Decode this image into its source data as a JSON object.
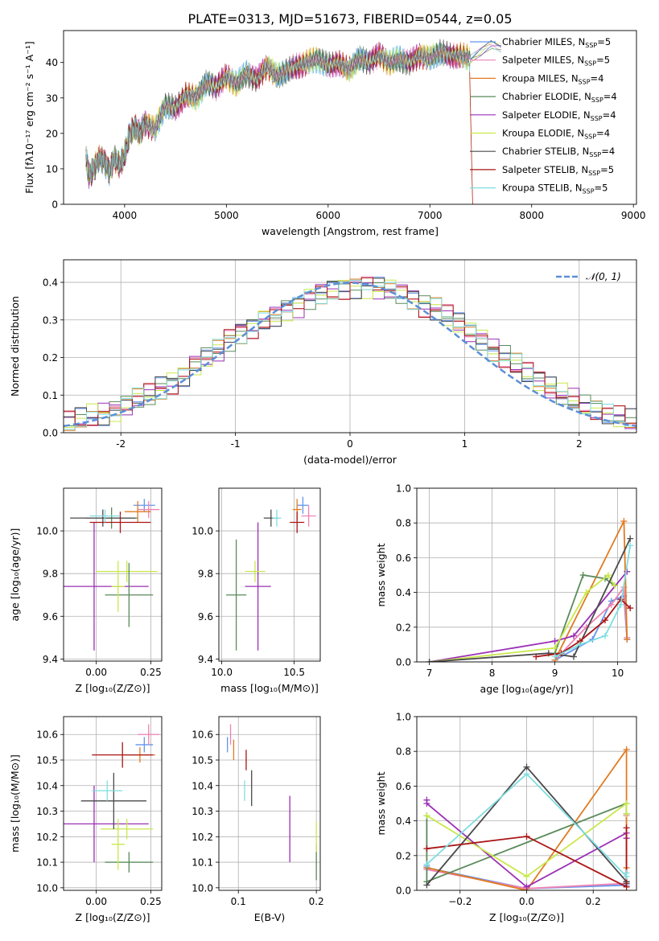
{
  "figure_title": "PLATE=0313, MJD=51673, FIBERID=0544, z=0.05",
  "series": [
    {
      "key": "cm",
      "label": "Chabrier MILES, N",
      "n": "=5",
      "color": "#6495ed"
    },
    {
      "key": "sm",
      "label": "Salpeter MILES, N",
      "n": "=5",
      "color": "#ee82b4"
    },
    {
      "key": "km",
      "label": "Kroupa MILES, N",
      "n": "=4",
      "color": "#e07b20"
    },
    {
      "key": "ce",
      "label": "Chabrier ELODIE, N",
      "n": "=4",
      "color": "#5a8a5a"
    },
    {
      "key": "se",
      "label": "Salpeter ELODIE, N",
      "n": "=4",
      "color": "#9b2fb5"
    },
    {
      "key": "ke",
      "label": "Kroupa ELODIE, N",
      "n": "=4",
      "color": "#c8e84a"
    },
    {
      "key": "cs",
      "label": "Chabrier STELIB, N",
      "n": "=4",
      "color": "#4a4a4a"
    },
    {
      "key": "ss",
      "label": "Salpeter STELIB, N",
      "n": "=5",
      "color": "#aa1515"
    },
    {
      "key": "ks",
      "label": "Kroupa STELIB, N",
      "n": "=5",
      "color": "#7fdde0"
    }
  ],
  "legend_sub": "SSP",
  "chart_data": [
    {
      "id": "spectrum",
      "type": "line",
      "xlabel": "wavelength [Angstrom, rest frame]",
      "ylabel": "Flux [fλ10⁻¹⁷ erg cm⁻² s⁻¹ A⁻¹]",
      "xlim": [
        3400,
        9030
      ],
      "ylim": [
        0,
        49
      ],
      "xticks": [
        4000,
        5000,
        6000,
        7000,
        8000,
        9000
      ],
      "yticks": [
        0,
        10,
        20,
        30,
        40
      ],
      "grid": false,
      "legend": "top-right",
      "x": [
        3620,
        3650,
        3700,
        3750,
        3800,
        3850,
        3900,
        3950,
        4000,
        4050,
        4100,
        4150,
        4200,
        4300,
        4400,
        4500,
        4600,
        4700,
        4800,
        4900,
        5000,
        5100,
        5200,
        5300,
        5400,
        5500,
        5600,
        5700,
        5800,
        5900,
        6000,
        6100,
        6200,
        6300,
        6400,
        6500,
        6600,
        6700,
        6800,
        6900,
        7000,
        7100,
        7200,
        7300,
        7400
      ],
      "y": [
        14,
        8,
        10,
        13,
        12,
        9,
        13,
        11,
        14,
        20,
        22,
        20,
        23,
        21,
        28,
        27,
        31,
        30,
        34,
        33,
        36,
        34,
        37,
        35,
        39,
        36,
        38,
        39,
        40,
        41,
        39,
        40,
        38,
        41,
        40,
        42,
        40,
        41,
        40,
        42,
        41,
        43,
        42,
        42,
        41
      ],
      "legend_tail": {
        "x": [
          7400,
          7500,
          7600,
          7700
        ],
        "y": [
          41,
          43,
          45,
          44
        ]
      },
      "deep_drop_x": 7420
    },
    {
      "id": "residuals",
      "type": "line",
      "xlabel": "(data-model)/error",
      "ylabel": "Normed distribution",
      "xlim": [
        -2.5,
        2.5
      ],
      "ylim": [
        0,
        0.46
      ],
      "xticks": [
        -2,
        -1,
        0,
        1,
        2
      ],
      "yticks": [
        0.0,
        0.1,
        0.2,
        0.3,
        0.4
      ],
      "grid": true,
      "legend": "top-right",
      "normal_label": "𝒩(0, 1)",
      "normal_color": "#5b8fd6",
      "bins": [
        -2.5,
        -2.4,
        -2.3,
        -2.2,
        -2.1,
        -2.0,
        -1.9,
        -1.8,
        -1.7,
        -1.6,
        -1.5,
        -1.4,
        -1.3,
        -1.2,
        -1.1,
        -1.0,
        -0.9,
        -0.8,
        -0.7,
        -0.6,
        -0.5,
        -0.4,
        -0.3,
        -0.2,
        -0.1,
        0.0,
        0.1,
        0.2,
        0.3,
        0.4,
        0.5,
        0.6,
        0.7,
        0.8,
        0.9,
        1.0,
        1.1,
        1.2,
        1.3,
        1.4,
        1.5,
        1.6,
        1.7,
        1.8,
        1.9,
        2.0,
        2.1,
        2.2,
        2.3,
        2.4
      ],
      "hist_base": [
        0.03,
        0.035,
        0.045,
        0.05,
        0.06,
        0.075,
        0.09,
        0.1,
        0.12,
        0.135,
        0.155,
        0.18,
        0.2,
        0.22,
        0.25,
        0.27,
        0.28,
        0.3,
        0.31,
        0.33,
        0.34,
        0.36,
        0.37,
        0.38,
        0.385,
        0.39,
        0.39,
        0.385,
        0.38,
        0.37,
        0.36,
        0.34,
        0.33,
        0.31,
        0.29,
        0.27,
        0.25,
        0.22,
        0.2,
        0.18,
        0.16,
        0.14,
        0.12,
        0.1,
        0.085,
        0.07,
        0.06,
        0.05,
        0.04,
        0.03
      ]
    },
    {
      "id": "age_vs_Z",
      "type": "scatter",
      "xlabel": "Z [log₁₀(Z/Z⊙)]",
      "ylabel": "age  [log₁₀(age/yr)]",
      "xlim": [
        -0.15,
        0.3
      ],
      "ylim": [
        9.39,
        10.2
      ],
      "xticks": [
        0.0,
        0.25
      ],
      "xtick_labels": [
        "0.00",
        "0.25"
      ],
      "yticks": [
        9.4,
        9.6,
        9.8,
        10.0
      ],
      "grid": true,
      "points": [
        {
          "s": "cm",
          "x": 0.22,
          "y": 10.12,
          "xe": 0.05,
          "ye": 0.03
        },
        {
          "s": "sm",
          "x": 0.24,
          "y": 10.1,
          "xe": 0.05,
          "ye": 0.04
        },
        {
          "s": "km",
          "x": 0.19,
          "y": 10.09,
          "xe": 0.06,
          "ye": 0.05
        },
        {
          "s": "ce",
          "x": 0.07,
          "y": 10.06,
          "xe": 0.12,
          "ye": 0.05
        },
        {
          "s": "se",
          "x": -0.01,
          "y": 9.74,
          "xe": 0.25,
          "ye": 0.3
        },
        {
          "s": "ke",
          "x": 0.14,
          "y": 9.81,
          "xe": 0.14,
          "ye": 0.05
        },
        {
          "s": "cs",
          "x": 0.03,
          "y": 10.06,
          "xe": 0.15,
          "ye": 0.04
        },
        {
          "s": "ss",
          "x": 0.11,
          "y": 10.04,
          "xe": 0.14,
          "ye": 0.05
        },
        {
          "s": "ks",
          "x": 0.04,
          "y": 10.07,
          "xe": 0.07,
          "ye": 0.03
        },
        {
          "s": "ce",
          "x": 0.15,
          "y": 9.7,
          "xe": 0.11,
          "ye": 0.15
        },
        {
          "s": "ke",
          "x": 0.1,
          "y": 9.74,
          "xe": 0.03,
          "ye": 0.12
        }
      ]
    },
    {
      "id": "age_vs_mass",
      "type": "scatter",
      "xlabel": "mass [log₁₀(M/M⊙)]",
      "ylabel": "",
      "xlim": [
        9.98,
        10.68
      ],
      "ylim": [
        9.39,
        10.2
      ],
      "xticks": [
        10.0,
        10.5
      ],
      "xtick_labels": [
        "10.0",
        "10.5"
      ],
      "yticks": [
        9.4,
        9.6,
        9.8,
        10.0
      ],
      "grid": true,
      "points": [
        {
          "s": "cm",
          "x": 10.56,
          "y": 10.12,
          "xe": 0.04,
          "ye": 0.04
        },
        {
          "s": "sm",
          "x": 10.6,
          "y": 10.07,
          "xe": 0.05,
          "ye": 0.05
        },
        {
          "s": "km",
          "x": 10.52,
          "y": 10.1,
          "xe": 0.03,
          "ye": 0.05
        },
        {
          "s": "ce",
          "x": 10.1,
          "y": 9.7,
          "xe": 0.07,
          "ye": 0.26
        },
        {
          "s": "se",
          "x": 10.25,
          "y": 9.74,
          "xe": 0.09,
          "ye": 0.3
        },
        {
          "s": "ke",
          "x": 10.23,
          "y": 9.81,
          "xe": 0.07,
          "ye": 0.05
        },
        {
          "s": "cs",
          "x": 10.34,
          "y": 10.06,
          "xe": 0.05,
          "ye": 0.04
        },
        {
          "s": "ss",
          "x": 10.52,
          "y": 10.04,
          "xe": 0.05,
          "ye": 0.05
        },
        {
          "s": "ks",
          "x": 10.38,
          "y": 10.06,
          "xe": 0.03,
          "ye": 0.04
        }
      ]
    },
    {
      "id": "weight_vs_age",
      "type": "line",
      "xlabel": "age  [log₁₀(age/yr)]",
      "ylabel": "mass weight",
      "xlim": [
        6.8,
        10.3
      ],
      "ylim": [
        0,
        1.0
      ],
      "xticks": [
        7,
        8,
        9,
        10
      ],
      "yticks": [
        0.0,
        0.2,
        0.4,
        0.6,
        0.8,
        1.0
      ],
      "grid": true,
      "lines": [
        {
          "s": "cm",
          "x": [
            9.0,
            9.6,
            9.9,
            10.1,
            10.15
          ],
          "y": [
            0.01,
            0.13,
            0.35,
            0.38,
            0.13
          ]
        },
        {
          "s": "sm",
          "x": [
            9.0,
            9.5,
            9.9,
            10.1,
            10.15
          ],
          "y": [
            0.01,
            0.2,
            0.33,
            0.43,
            0.14
          ]
        },
        {
          "s": "km",
          "x": [
            9.0,
            10.1,
            10.15
          ],
          "y": [
            0.01,
            0.81,
            0.13
          ]
        },
        {
          "s": "ce",
          "x": [
            9.0,
            9.45,
            9.8,
            9.95
          ],
          "y": [
            0.05,
            0.5,
            0.48,
            0.44
          ]
        },
        {
          "s": "se",
          "x": [
            7.0,
            9.0,
            9.3,
            10.15
          ],
          "y": [
            0.0,
            0.12,
            0.15,
            0.52
          ]
        },
        {
          "s": "ke",
          "x": [
            7.0,
            9.0,
            9.5,
            9.85,
            9.95
          ],
          "y": [
            0.0,
            0.08,
            0.4,
            0.5,
            0.44
          ]
        },
        {
          "s": "cs",
          "x": [
            7.0,
            8.9,
            9.3,
            10.2
          ],
          "y": [
            0.0,
            0.05,
            0.03,
            0.71
          ]
        },
        {
          "s": "ss",
          "x": [
            8.7,
            9.1,
            9.4,
            9.8,
            10.05,
            10.2
          ],
          "y": [
            0.03,
            0.05,
            0.12,
            0.24,
            0.36,
            0.31
          ]
        },
        {
          "s": "ks",
          "x": [
            9.0,
            9.4,
            9.8,
            10.05,
            10.2
          ],
          "y": [
            0.03,
            0.1,
            0.15,
            0.33,
            0.67
          ]
        }
      ]
    },
    {
      "id": "mass_vs_Z",
      "type": "scatter",
      "xlabel": "Z [log₁₀(Z/Z⊙)]",
      "ylabel": "mass [log₁₀(M/M⊙)]",
      "xlim": [
        -0.15,
        0.3
      ],
      "ylim": [
        9.99,
        10.67
      ],
      "xticks": [
        0.0,
        0.25
      ],
      "xtick_labels": [
        "0.00",
        "0.25"
      ],
      "yticks": [
        10.0,
        10.1,
        10.2,
        10.3,
        10.4,
        10.5,
        10.6
      ],
      "grid": true,
      "points": [
        {
          "s": "cm",
          "x": 0.22,
          "y": 10.56,
          "xe": 0.04,
          "ye": 0.03
        },
        {
          "s": "sm",
          "x": 0.24,
          "y": 10.6,
          "xe": 0.05,
          "ye": 0.04
        },
        {
          "s": "km",
          "x": 0.2,
          "y": 10.52,
          "xe": 0.07,
          "ye": 0.03
        },
        {
          "s": "ce",
          "x": 0.15,
          "y": 10.1,
          "xe": 0.11,
          "ye": 0.04
        },
        {
          "s": "se",
          "x": -0.01,
          "y": 10.25,
          "xe": 0.25,
          "ye": 0.15
        },
        {
          "s": "ke",
          "x": 0.14,
          "y": 10.23,
          "xe": 0.12,
          "ye": 0.04
        },
        {
          "s": "cs",
          "x": 0.08,
          "y": 10.34,
          "xe": 0.15,
          "ye": 0.11
        },
        {
          "s": "ss",
          "x": 0.12,
          "y": 10.52,
          "xe": 0.14,
          "ye": 0.05
        },
        {
          "s": "ks",
          "x": 0.05,
          "y": 10.38,
          "xe": 0.07,
          "ye": 0.04
        },
        {
          "s": "ke",
          "x": 0.1,
          "y": 10.17,
          "xe": 0.03,
          "ye": 0.1
        }
      ]
    },
    {
      "id": "mass_vs_EBV",
      "type": "scatter",
      "xlabel": "E(B-V)",
      "ylabel": "",
      "xlim": [
        0.075,
        0.205
      ],
      "ylim": [
        9.99,
        10.67
      ],
      "xticks": [
        0.1,
        0.2
      ],
      "xtick_labels": [
        "0.1",
        "0.2"
      ],
      "yticks": [
        10.0,
        10.1,
        10.2,
        10.3,
        10.4,
        10.5,
        10.6
      ],
      "grid": true,
      "points": [
        {
          "s": "cm",
          "x": 0.086,
          "y": 10.56,
          "xe": 0.0,
          "ye": 0.03
        },
        {
          "s": "sm",
          "x": 0.09,
          "y": 10.6,
          "xe": 0.0,
          "ye": 0.04
        },
        {
          "s": "km",
          "x": 0.094,
          "y": 10.54,
          "xe": 0.0,
          "ye": 0.04
        },
        {
          "s": "ce",
          "x": 0.2,
          "y": 10.1,
          "xe": 0.0,
          "ye": 0.07
        },
        {
          "s": "se",
          "x": 0.166,
          "y": 10.23,
          "xe": 0.0,
          "ye": 0.13
        },
        {
          "s": "ke",
          "x": 0.2,
          "y": 10.2,
          "xe": 0.0,
          "ye": 0.06
        },
        {
          "s": "cs",
          "x": 0.117,
          "y": 10.39,
          "xe": 0.0,
          "ye": 0.07
        },
        {
          "s": "ss",
          "x": 0.11,
          "y": 10.5,
          "xe": 0.0,
          "ye": 0.04
        },
        {
          "s": "ks",
          "x": 0.108,
          "y": 10.38,
          "xe": 0.0,
          "ye": 0.04
        }
      ]
    },
    {
      "id": "weight_vs_Z",
      "type": "line",
      "xlabel": "Z [log₁₀(Z/Z⊙)]",
      "ylabel": "mass weight",
      "xlim": [
        -0.33,
        0.33
      ],
      "ylim": [
        0,
        1.0
      ],
      "xticks": [
        -0.2,
        0.0,
        0.2
      ],
      "xtick_labels": [
        "−0.2",
        "0.0",
        "0.2"
      ],
      "yticks": [
        0.0,
        0.2,
        0.4,
        0.6,
        0.8,
        1.0
      ],
      "grid": true,
      "lines": [
        {
          "s": "cm",
          "x": [
            -0.3,
            -0.3,
            0.0,
            0.3,
            0.3
          ],
          "y": [
            0.14,
            0.13,
            0.01,
            0.03,
            0.05
          ]
        },
        {
          "s": "sm",
          "x": [
            -0.3,
            0.0,
            0.3,
            0.3
          ],
          "y": [
            0.12,
            0.01,
            0.04,
            0.43
          ]
        },
        {
          "s": "km",
          "x": [
            -0.3,
            0.0,
            0.3,
            0.3
          ],
          "y": [
            0.13,
            0.0,
            0.81,
            0.13
          ]
        },
        {
          "s": "ce",
          "x": [
            -0.3,
            -0.3,
            0.3,
            0.3
          ],
          "y": [
            0.43,
            0.05,
            0.5,
            0.44
          ]
        },
        {
          "s": "se",
          "x": [
            -0.3,
            -0.3,
            0.0,
            0.3,
            0.3
          ],
          "y": [
            0.52,
            0.5,
            0.02,
            0.33,
            0.3
          ]
        },
        {
          "s": "ke",
          "x": [
            -0.3,
            0.0,
            0.3,
            0.3
          ],
          "y": [
            0.43,
            0.08,
            0.5,
            0.44
          ]
        },
        {
          "s": "cs",
          "x": [
            -0.3,
            0.0,
            0.3,
            0.3
          ],
          "y": [
            0.03,
            0.71,
            0.05,
            0.04
          ]
        },
        {
          "s": "ss",
          "x": [
            -0.3,
            0.0,
            0.3,
            0.3
          ],
          "y": [
            0.24,
            0.31,
            0.02,
            0.36
          ]
        },
        {
          "s": "ks",
          "x": [
            -0.3,
            0.0,
            0.3,
            0.3
          ],
          "y": [
            0.15,
            0.67,
            0.08,
            0.1
          ]
        }
      ]
    }
  ]
}
